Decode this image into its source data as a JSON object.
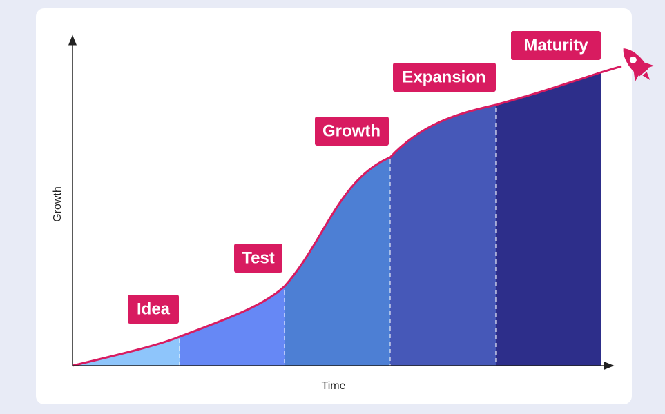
{
  "axes": {
    "y_label": "Growth",
    "x_label": "Time"
  },
  "stages": [
    {
      "label": "Idea"
    },
    {
      "label": "Test"
    },
    {
      "label": "Growth"
    },
    {
      "label": "Expansion"
    },
    {
      "label": "Maturity"
    }
  ]
}
